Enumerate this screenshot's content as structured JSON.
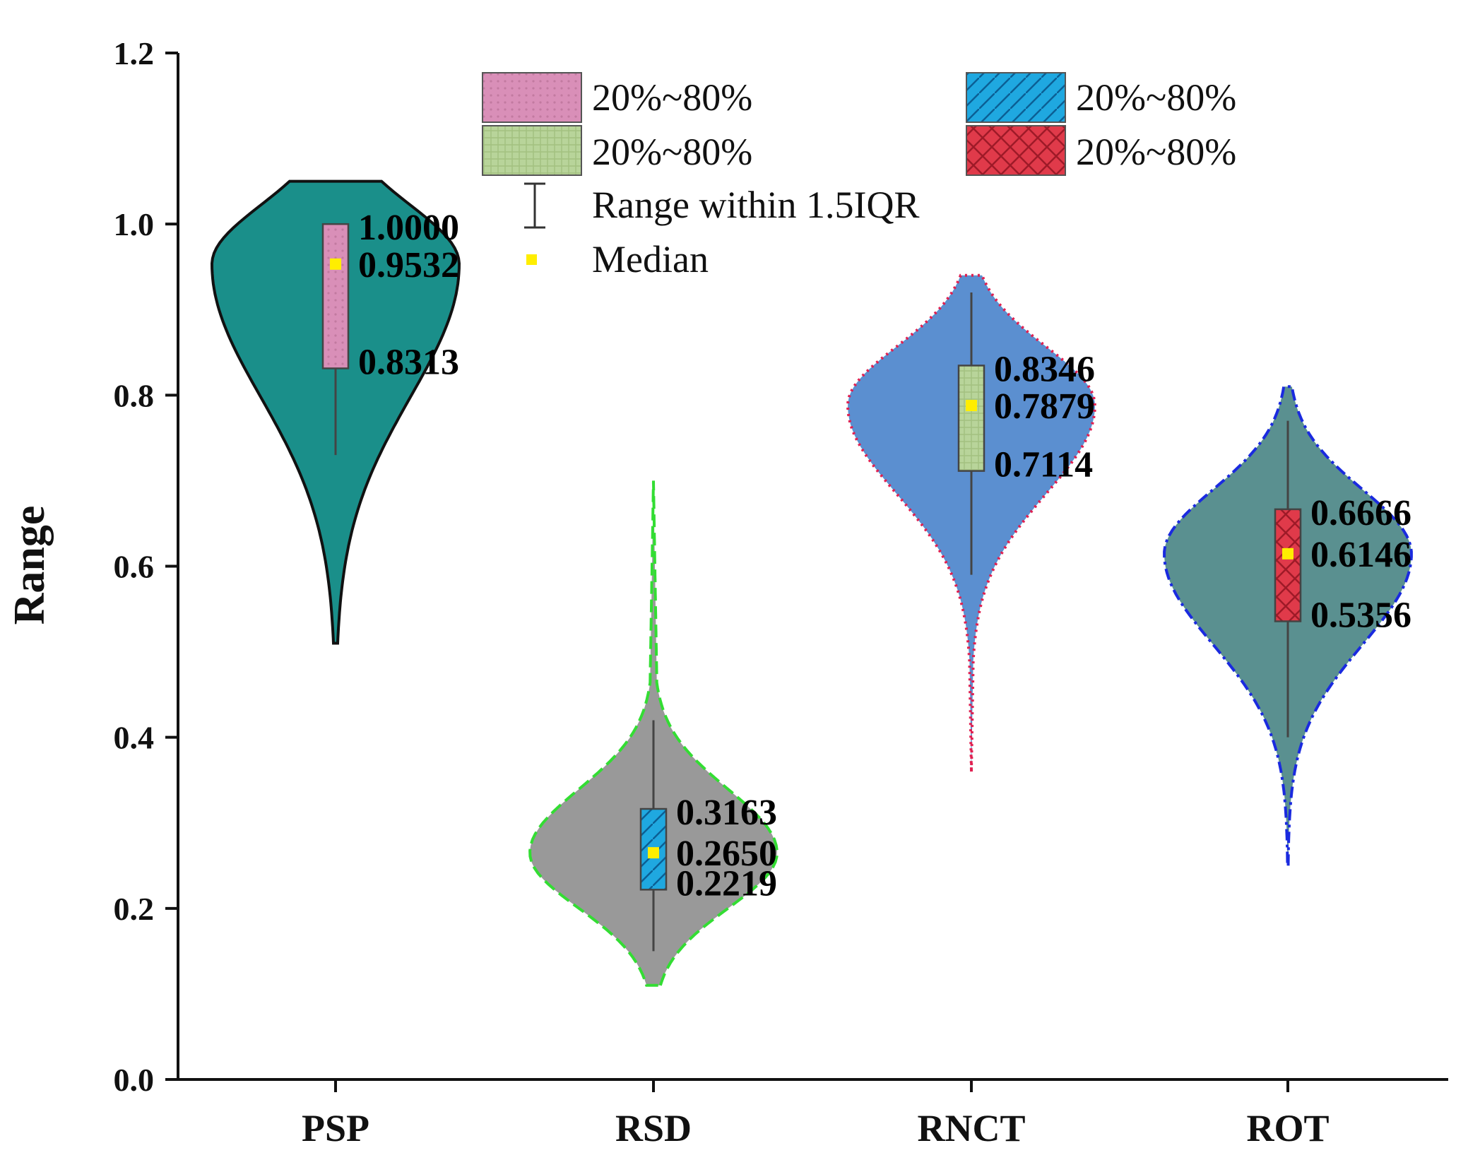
{
  "chart_data": {
    "type": "violin",
    "title": "",
    "xlabel": "",
    "ylabel": "Range",
    "ylim": [
      0.0,
      1.2
    ],
    "yticks": [
      "0.0",
      "0.2",
      "0.4",
      "0.6",
      "0.8",
      "1.0",
      "1.2"
    ],
    "categories": [
      "PSP",
      "RSD",
      "RNCT",
      "ROT"
    ],
    "series": [
      {
        "name": "PSP",
        "violin_color": "#1a8f8a",
        "outline_color": "#111111",
        "box_color": "#d98fb8",
        "box_pattern": "dots",
        "q20": 0.8313,
        "median": 0.9532,
        "q80": 1.0,
        "whisker_low": 0.73,
        "whisker_high": 1.0,
        "min": 0.51,
        "max": 1.05,
        "labels": [
          "1.0000",
          "0.9532",
          "0.8313"
        ]
      },
      {
        "name": "RSD",
        "violin_color": "#999999",
        "outline_color": "#33dd33",
        "box_color": "#1fa8e0",
        "box_pattern": "diagonal",
        "q20": 0.2219,
        "median": 0.265,
        "q80": 0.3163,
        "whisker_low": 0.15,
        "whisker_high": 0.42,
        "min": 0.11,
        "max": 0.7,
        "labels": [
          "0.3163",
          "0.2650",
          "0.2219"
        ]
      },
      {
        "name": "RNCT",
        "violin_color": "#5b8fd0",
        "outline_color": "#e02050",
        "box_color": "#b8d49a",
        "box_pattern": "grid",
        "q20": 0.7114,
        "median": 0.7879,
        "q80": 0.8346,
        "whisker_low": 0.59,
        "whisker_high": 0.92,
        "min": 0.36,
        "max": 0.94,
        "labels": [
          "0.8346",
          "0.7879",
          "0.7114"
        ]
      },
      {
        "name": "ROT",
        "violin_color": "#5a9090",
        "outline_color": "#1a2adf",
        "box_color": "#e03a4a",
        "box_pattern": "crosshatch",
        "q20": 0.5356,
        "median": 0.6146,
        "q80": 0.6666,
        "whisker_low": 0.4,
        "whisker_high": 0.77,
        "min": 0.25,
        "max": 0.81,
        "labels": [
          "0.6666",
          "0.6146",
          "0.5356"
        ]
      }
    ],
    "legend": {
      "position": "top",
      "entries": [
        {
          "label": "20%~80%",
          "color": "#d98fb8",
          "pattern": "dots"
        },
        {
          "label": "20%~80%",
          "color": "#1fa8e0",
          "pattern": "diagonal"
        },
        {
          "label": "20%~80%",
          "color": "#b8d49a",
          "pattern": "grid"
        },
        {
          "label": "20%~80%",
          "color": "#e03a4a",
          "pattern": "crosshatch"
        },
        {
          "label": "Range within 1.5IQR",
          "symbol": "whisker"
        },
        {
          "label": "Median",
          "symbol": "square",
          "color": "#ffee00"
        }
      ]
    }
  }
}
